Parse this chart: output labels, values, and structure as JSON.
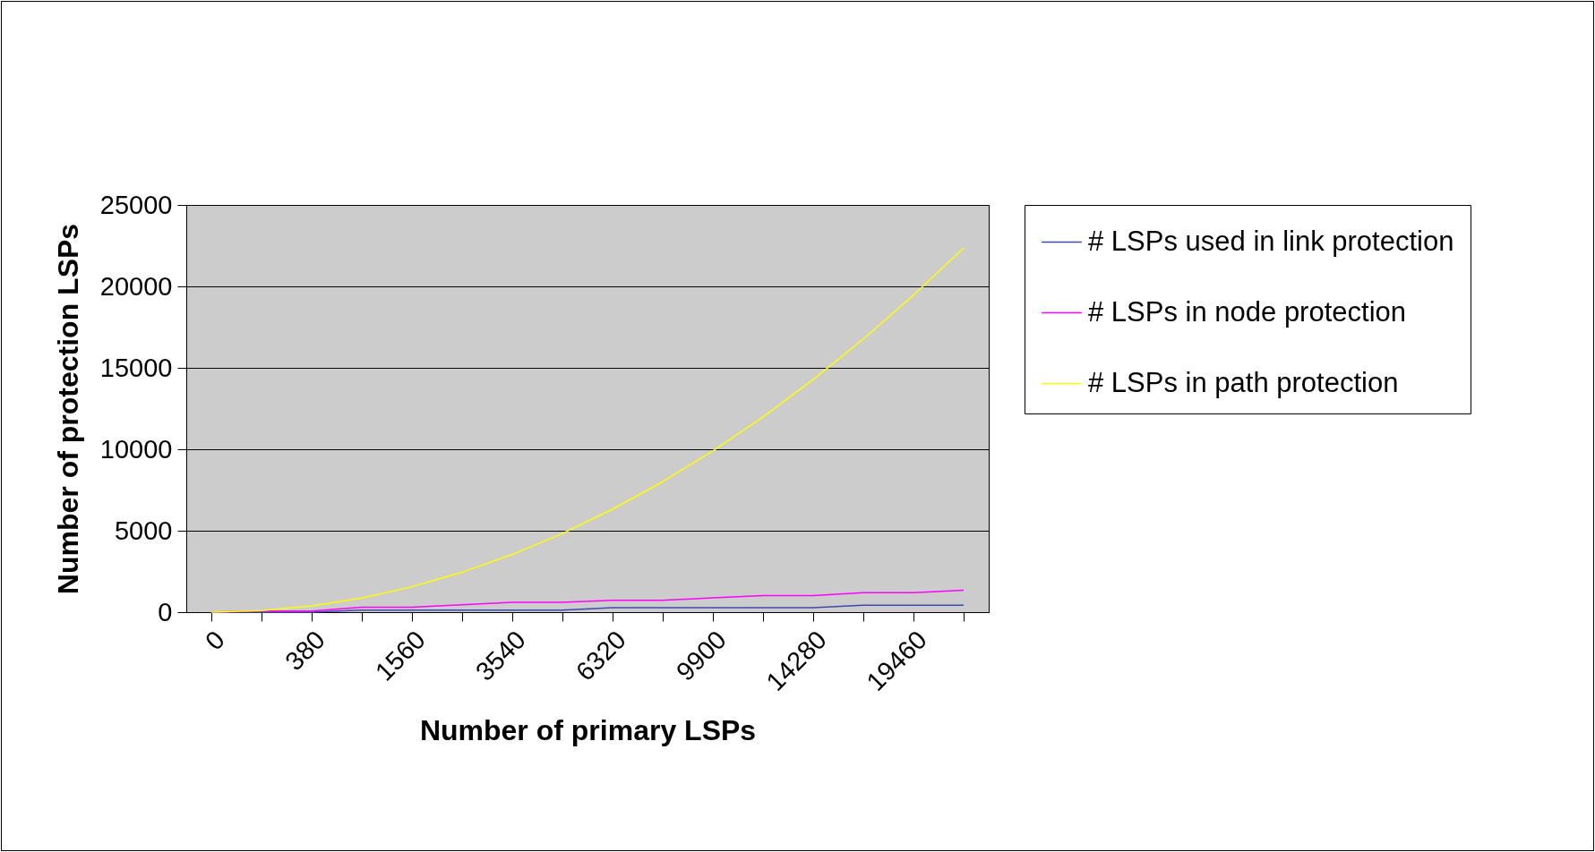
{
  "chart_data": {
    "type": "line",
    "xlabel": "Number of primary LSPs",
    "ylabel": "Number of protection LSPs",
    "categories": [
      "0",
      null,
      "380",
      null,
      "1560",
      null,
      "3540",
      null,
      "6320",
      null,
      "9900",
      null,
      "14280",
      null,
      "19460",
      null
    ],
    "series": [
      {
        "name": "# LSPs used in link protection",
        "color": "#3f48b0",
        "values": [
          0,
          0,
          0,
          130,
          130,
          130,
          130,
          130,
          270,
          270,
          270,
          270,
          270,
          430,
          430,
          430
        ]
      },
      {
        "name": "# LSPs in node protection",
        "color": "#ff00ff",
        "values": [
          0,
          70,
          70,
          300,
          300,
          450,
          600,
          600,
          730,
          730,
          880,
          1020,
          1020,
          1190,
          1190,
          1350
        ]
      },
      {
        "name": "# LSPs in path protection",
        "color": "#ffff00",
        "values": [
          0,
          90,
          380,
          870,
          1560,
          2450,
          3540,
          4830,
          6320,
          8010,
          9900,
          11990,
          14280,
          16770,
          19460,
          22350
        ]
      }
    ],
    "ylim": [
      0,
      25000
    ],
    "yticks": [
      0,
      5000,
      10000,
      15000,
      20000,
      25000
    ],
    "grid": "y",
    "legend": "right"
  }
}
